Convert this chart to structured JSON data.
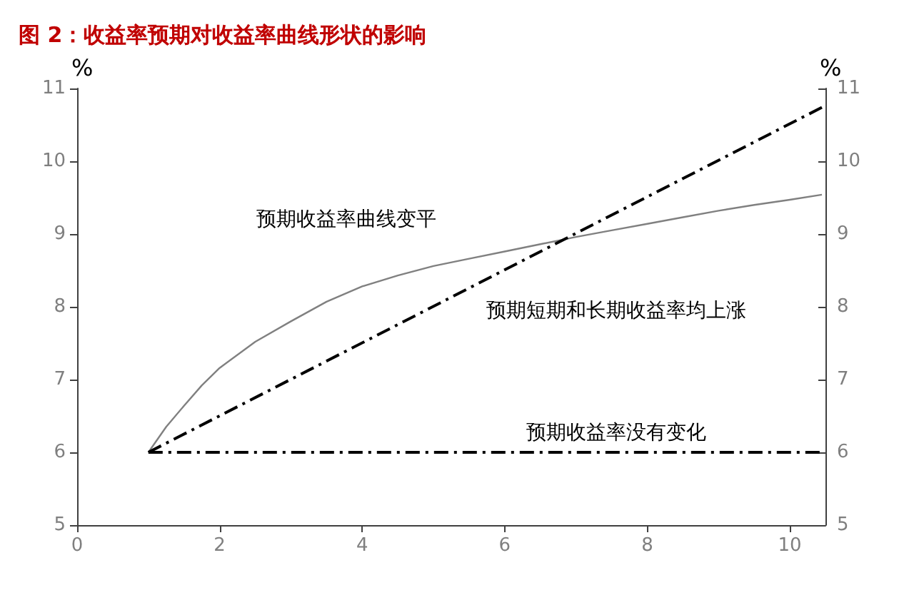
{
  "chart_data": {
    "type": "line",
    "title": "图 2：收益率预期对收益率曲线形状的影响",
    "ylabel": "%",
    "y2label": "%",
    "xlim": [
      0,
      10.5
    ],
    "xticks": [
      0,
      2,
      4,
      6,
      8,
      10
    ],
    "ylim": [
      5,
      11
    ],
    "yticks": [
      5,
      6,
      7,
      8,
      9,
      10,
      11
    ],
    "y2lim": [
      5,
      11
    ],
    "y2ticks": [
      5,
      6,
      7,
      8,
      9,
      10,
      11
    ],
    "grid": false,
    "marker": "none",
    "series": [
      {
        "color": "#808080",
        "line_style": "solid",
        "x": [
          1,
          1.25,
          1.5,
          1.75,
          2,
          2.5,
          3,
          3.5,
          4,
          4.5,
          5,
          5.5,
          6,
          6.5,
          7,
          7.5,
          8,
          8.5,
          9,
          9.5,
          10,
          10.45
        ],
        "values": [
          6,
          6.35,
          6.64,
          6.92,
          7.16,
          7.52,
          7.8,
          8.07,
          8.28,
          8.43,
          8.56,
          8.66,
          8.76,
          8.86,
          8.96,
          9.05,
          9.14,
          9.23,
          9.32,
          9.4,
          9.47,
          9.54
        ]
      },
      {
        "color": "#000000",
        "line_style": "dashed",
        "x": [
          1,
          10.45
        ],
        "values": [
          6,
          10.74
        ]
      },
      {
        "color": "#000000",
        "line_style": "dashed",
        "x": [
          1,
          10.45
        ],
        "values": [
          6,
          6
        ]
      }
    ],
    "annotations": [
      "预期收益率曲线变平",
      "预期短期和长期收益率均上涨",
      "预期收益率没有变化"
    ]
  }
}
